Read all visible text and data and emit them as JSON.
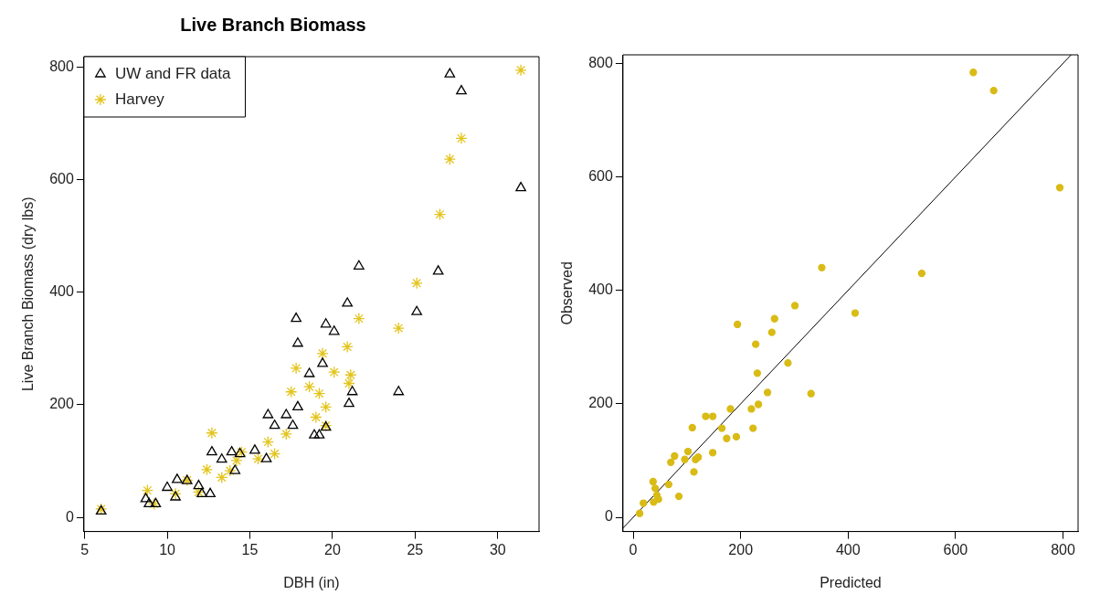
{
  "chart_data": [
    {
      "type": "scatter",
      "title": "Live Branch Biomass",
      "xlabel": "DBH (in)",
      "ylabel": "Live Branch Biomass (dry lbs)",
      "xlim": [
        4.96,
        32.5
      ],
      "ylim": [
        -25,
        818
      ],
      "xticks": [
        5,
        10,
        15,
        20,
        25,
        30
      ],
      "yticks": [
        0,
        200,
        400,
        600,
        800
      ],
      "grid": false,
      "legend": "top left",
      "series": [
        {
          "name": "UW and FR data",
          "color": "#000000",
          "marker": "triangle",
          "x": [
            6.0,
            8.7,
            8.9,
            9.3,
            10.0,
            10.5,
            10.6,
            11.2,
            11.9,
            12.1,
            12.6,
            12.7,
            13.3,
            13.9,
            14.1,
            14.4,
            15.3,
            16.0,
            16.1,
            16.5,
            17.2,
            17.6,
            17.8,
            17.9,
            17.9,
            18.6,
            18.9,
            19.2,
            19.4,
            19.6,
            19.6,
            20.1,
            20.9,
            21.0,
            21.2,
            21.6,
            24.0,
            25.1,
            26.4,
            27.1,
            27.8,
            31.4
          ],
          "values": [
            11,
            33,
            24,
            24,
            53,
            36,
            67,
            65,
            56,
            42,
            42,
            116,
            103,
            116,
            83,
            113,
            119,
            104,
            182,
            163,
            182,
            163,
            353,
            196,
            309,
            255,
            146,
            146,
            273,
            160,
            343,
            330,
            380,
            202,
            223,
            446,
            223,
            365,
            437,
            787,
            757,
            585
          ]
        },
        {
          "name": "Harvey",
          "color": "#e3c41c",
          "marker": "cross",
          "x": [
            6.0,
            8.8,
            9.2,
            10.5,
            11.2,
            11.9,
            12.4,
            12.7,
            13.3,
            13.8,
            14.2,
            14.5,
            15.5,
            16.1,
            16.5,
            17.2,
            17.5,
            17.8,
            18.6,
            19.0,
            19.2,
            19.4,
            19.6,
            19.6,
            20.1,
            20.9,
            21.0,
            21.1,
            21.6,
            24.0,
            25.1,
            26.5,
            27.1,
            27.8,
            31.4
          ],
          "values": [
            15,
            48,
            24,
            42,
            66,
            45,
            85,
            150,
            71,
            83,
            101,
            116,
            104,
            134,
            113,
            148,
            223,
            265,
            232,
            178,
            220,
            291,
            196,
            163,
            258,
            303,
            238,
            253,
            353,
            336,
            416,
            538,
            636,
            673,
            794
          ]
        }
      ]
    },
    {
      "type": "scatter",
      "xlabel": "Predicted",
      "ylabel": "Observed",
      "xlim": [
        -19,
        828
      ],
      "ylim": [
        -25,
        815
      ],
      "xticks": [
        0,
        200,
        400,
        600,
        800
      ],
      "yticks": [
        0,
        200,
        400,
        600,
        800
      ],
      "grid": false,
      "series": [
        {
          "color": "#d9bb16",
          "marker": "circle",
          "x": [
            12,
            19,
            37,
            38,
            41,
            44,
            47,
            66,
            70,
            77,
            85,
            96,
            102,
            110,
            113,
            116,
            121,
            135,
            148,
            148,
            165,
            174,
            181,
            192,
            194,
            220,
            223,
            228,
            231,
            233,
            250,
            258,
            263,
            288,
            301,
            331,
            351,
            413,
            537,
            633,
            671,
            794
          ],
          "values": [
            7,
            25,
            63,
            27,
            51,
            39,
            32,
            58,
            97,
            108,
            37,
            102,
            116,
            158,
            80,
            102,
            106,
            178,
            178,
            114,
            157,
            139,
            191,
            142,
            340,
            191,
            157,
            305,
            254,
            199,
            220,
            326,
            350,
            272,
            373,
            218,
            440,
            360,
            430,
            784,
            752,
            581
          ]
        },
        {
          "type": "line",
          "color": "#000000",
          "marker": "none",
          "x": [
            -19,
            815
          ],
          "values": [
            -19,
            815
          ]
        }
      ]
    }
  ]
}
